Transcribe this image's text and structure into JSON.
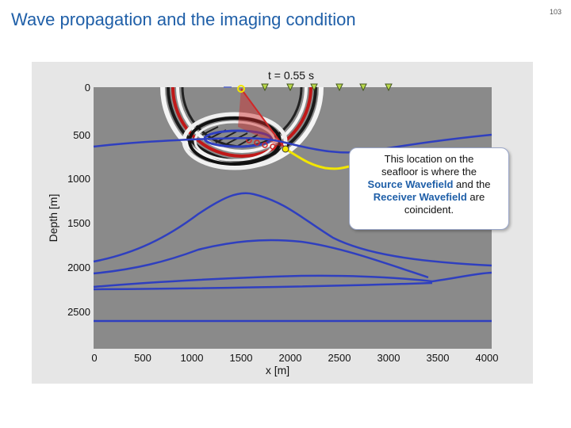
{
  "slide": {
    "title": "Wave propagation and the imaging condition",
    "page_number": "103"
  },
  "figure": {
    "time_label": "t = 0.55 s",
    "y_axis_label": "Depth [m]",
    "x_axis_label": "x [m]",
    "y_ticks": [
      "0",
      "500",
      "1000",
      "1500",
      "2000",
      "2500"
    ],
    "x_ticks": [
      "0",
      "500",
      "1000",
      "1500",
      "2000",
      "2500",
      "3000",
      "3500",
      "4000"
    ],
    "colors": {
      "background": "#8a8a8a",
      "horizons": "#2f3fbf",
      "source_ray": "#d02828",
      "receiver": "#b8d84a",
      "highlight_path": "#f2e600"
    }
  },
  "callout": {
    "line1": "This location on the",
    "line2": "seafloor is where the",
    "source_wavefield": "Source Wavefield",
    "and_the": " and the",
    "receiver_wavefield": "Receiver Wavefield",
    "are": "  are",
    "line5": "coincident."
  }
}
